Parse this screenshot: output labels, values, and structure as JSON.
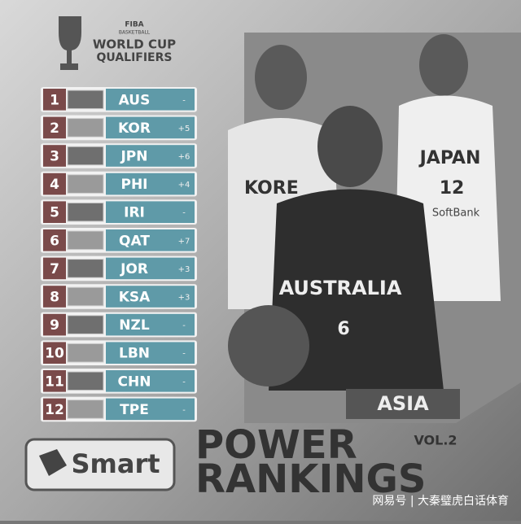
{
  "header": {
    "org": "FIBA",
    "sub": "BASKETBALL",
    "line1": "WORLD CUP",
    "line2": "QUALIFIERS"
  },
  "rankings": [
    {
      "rank": 1,
      "team": "AUS",
      "change": "-"
    },
    {
      "rank": 2,
      "team": "KOR",
      "change": "+5"
    },
    {
      "rank": 3,
      "team": "JPN",
      "change": "+6"
    },
    {
      "rank": 4,
      "team": "PHI",
      "change": "+4"
    },
    {
      "rank": 5,
      "team": "IRI",
      "change": "-"
    },
    {
      "rank": 6,
      "team": "QAT",
      "change": "+7"
    },
    {
      "rank": 7,
      "team": "JOR",
      "change": "+3"
    },
    {
      "rank": 8,
      "team": "KSA",
      "change": "+3"
    },
    {
      "rank": 9,
      "team": "NZL",
      "change": "-"
    },
    {
      "rank": 10,
      "team": "LBN",
      "change": "-"
    },
    {
      "rank": 11,
      "team": "CHN",
      "change": "-"
    },
    {
      "rank": 12,
      "team": "TPE",
      "change": "-"
    }
  ],
  "jerseys": {
    "korea": "KORE",
    "japan": "JAPAN",
    "japan_number": "12",
    "sponsor": "SoftBank",
    "australia": "AUSTRALIA",
    "australia_number": "6"
  },
  "region": "ASIA",
  "sponsor": "Smart",
  "title": {
    "line1": "POWER",
    "line2": "RANKINGS",
    "volume": "VOL.2"
  },
  "watermark": "网易号 | 大秦璧虎白话体育"
}
